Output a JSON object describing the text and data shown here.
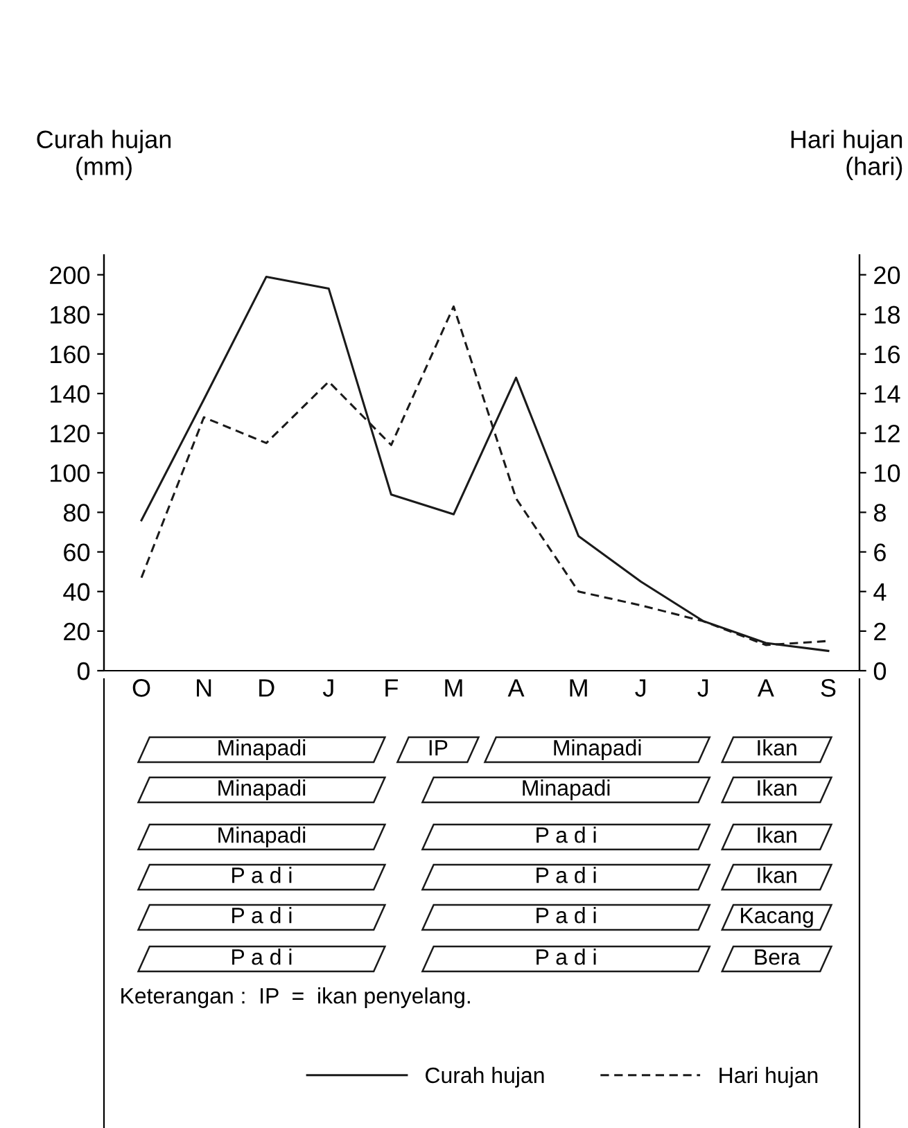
{
  "chart_data": {
    "type": "line",
    "ylabel": "Curah hujan\n(mm)",
    "y2label": "Hari hujan\n(hari)",
    "categories": [
      "O",
      "N",
      "D",
      "J",
      "F",
      "M",
      "A",
      "M",
      "J",
      "J",
      "A",
      "S"
    ],
    "series": [
      {
        "name": "Curah hujan",
        "color": "#1a1a1a",
        "line_style": "solid",
        "values": [
          76,
          137,
          199,
          193,
          89,
          79,
          148,
          68,
          45,
          25,
          14,
          10
        ]
      },
      {
        "name": "Hari hujan",
        "color": "#1a1a1a",
        "line_style": "dashed",
        "axis": "y2",
        "values": [
          4.7,
          12.8,
          11.5,
          14.6,
          11.4,
          18.4,
          8.7,
          4.0,
          3.3,
          2.5,
          1.3,
          1.5
        ]
      }
    ],
    "ylim": [
      0,
      210
    ],
    "yticks": [
      0,
      20,
      40,
      60,
      80,
      100,
      120,
      140,
      160,
      180,
      200
    ],
    "y2lim": [
      0,
      21
    ],
    "y2ticks": [
      0,
      2,
      4,
      6,
      8,
      10,
      12,
      14,
      16,
      18,
      20
    ],
    "grid": false,
    "marker": "none",
    "legend": "bottom",
    "annotations": [
      "Minapadi",
      "IP",
      "Minapadi",
      "Ikan",
      "Minapadi",
      "Minapadi",
      "Ikan",
      "Minapadi",
      "P a d i",
      "Ikan",
      "P a d i",
      "P a d i",
      "Ikan",
      "P a d i",
      "P a d i",
      "Kacang",
      "P a d i",
      "P a d i",
      "Bera",
      "Keterangan :  IP  =  ikan penyelang."
    ]
  }
}
